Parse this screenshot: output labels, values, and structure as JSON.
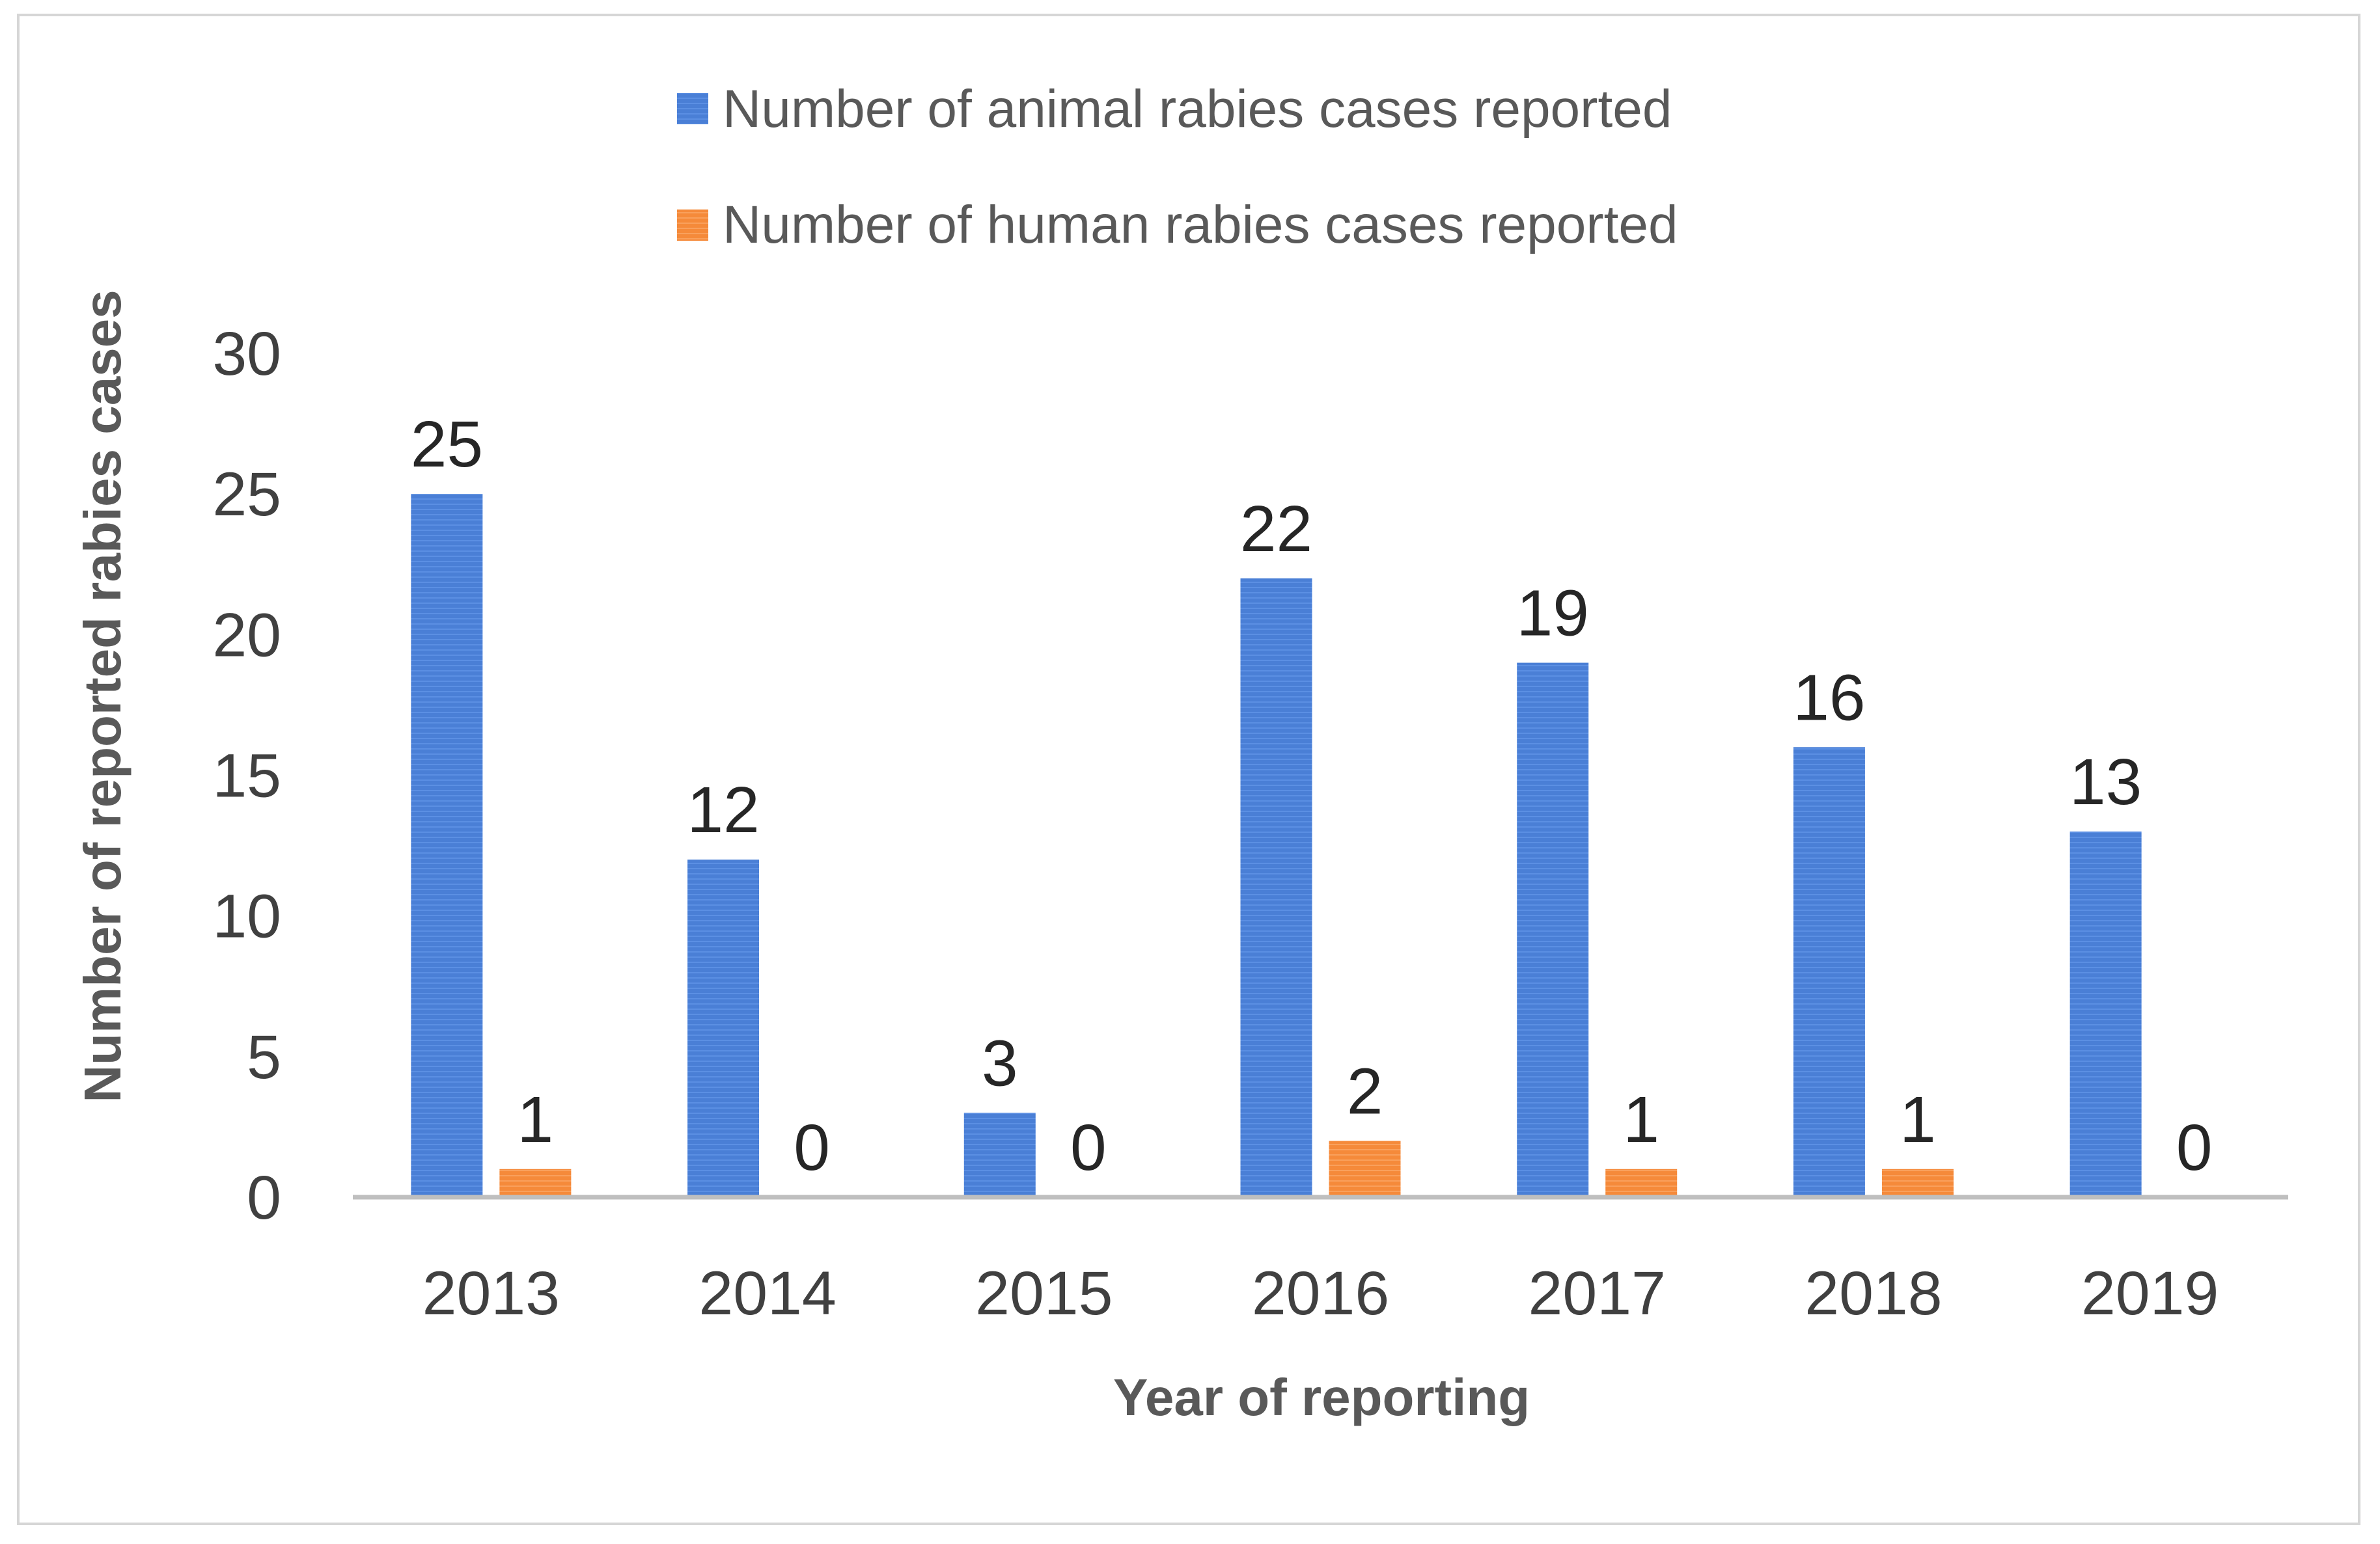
{
  "chart_data": {
    "type": "bar",
    "title": "",
    "xlabel": "Year of reporting",
    "ylabel": "Number of reported  rabies cases",
    "categories": [
      "2013",
      "2014",
      "2015",
      "2016",
      "2017",
      "2018",
      "2019"
    ],
    "series": [
      {
        "name": "Number of animal rabies cases reported",
        "color": "#4a7fd6",
        "values": [
          25,
          12,
          3,
          22,
          19,
          16,
          13
        ],
        "data_labels": [
          "25",
          "12",
          "3",
          "22",
          "19",
          "16",
          "13"
        ]
      },
      {
        "name": "Number of human rabies cases reported",
        "color": "#f58a3a",
        "values": [
          1,
          0,
          0,
          2,
          1,
          1,
          0
        ],
        "data_labels": [
          "1",
          "0",
          "0",
          "2",
          "1",
          "1",
          "0"
        ]
      }
    ],
    "ylim": [
      0,
      30
    ],
    "yticks": [
      "0",
      "5",
      "10",
      "15",
      "20",
      "25",
      "30"
    ],
    "grid": false,
    "legend_position": "top-center"
  }
}
